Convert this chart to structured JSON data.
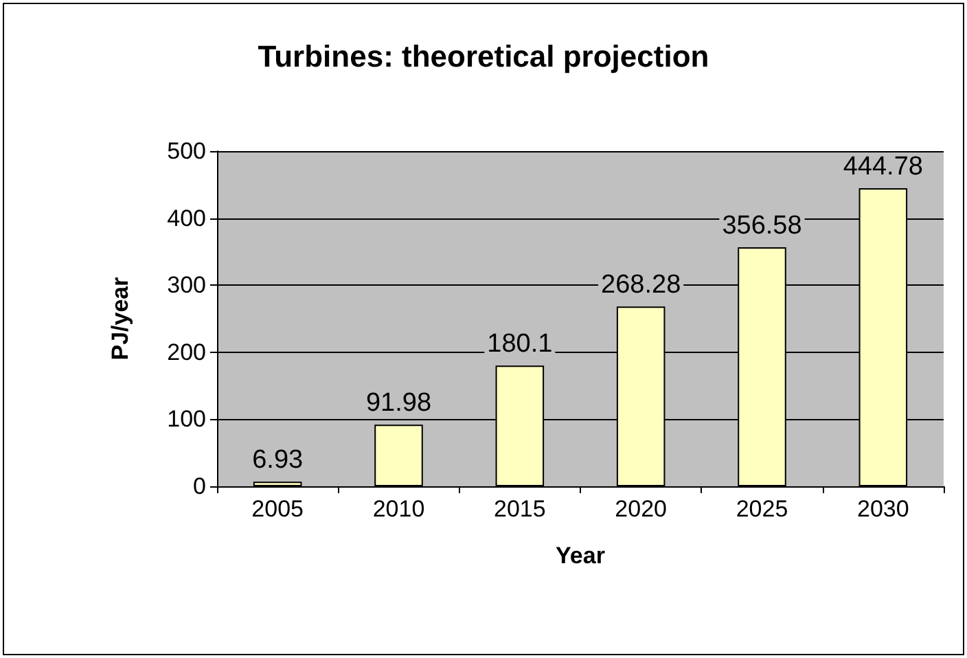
{
  "chart_data": {
    "type": "bar",
    "title": "Turbines: theoretical projection",
    "xlabel": "Year",
    "ylabel": "PJ/year",
    "categories": [
      "2005",
      "2010",
      "2015",
      "2020",
      "2025",
      "2030"
    ],
    "values": [
      6.93,
      91.98,
      180.1,
      268.28,
      356.58,
      444.78
    ],
    "color": "#ffffc0",
    "ylim": [
      0,
      500
    ],
    "yticks": [
      0,
      100,
      200,
      300,
      400,
      500
    ],
    "grid": "y",
    "data_labels": true
  }
}
